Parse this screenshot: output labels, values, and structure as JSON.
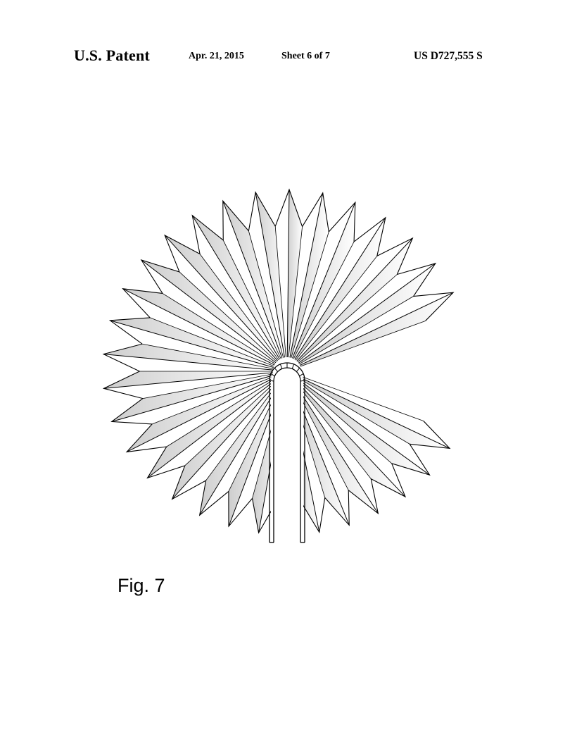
{
  "header": {
    "title": "U.S. Patent",
    "date": "Apr. 21, 2015",
    "sheet": "Sheet 6 of 7",
    "patent_number": "US D727,555 S"
  },
  "figure": {
    "label": "Fig. 7",
    "icon": "radial-pleated-fan-drawing",
    "line_color": "#000000",
    "background_color": "#ffffff"
  }
}
